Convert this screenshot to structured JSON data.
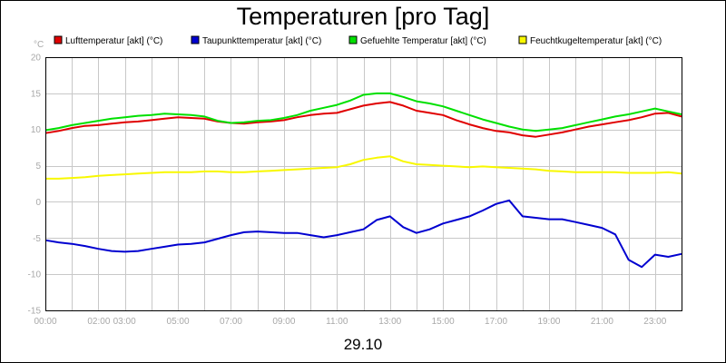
{
  "chart_data": {
    "type": "line",
    "title": "Temperaturen [pro Tag]",
    "ylabel_unit": "°C",
    "xlabel": "29.10",
    "ylim": [
      -15,
      20
    ],
    "yticks": [
      20,
      15,
      10,
      5,
      0,
      -5,
      -10,
      -15
    ],
    "xlim": [
      0,
      24
    ],
    "xticks": [
      {
        "t": 0,
        "label": "00:00"
      },
      {
        "t": 2,
        "label": "02:00"
      },
      {
        "t": 3,
        "label": "03:00"
      },
      {
        "t": 5,
        "label": "05:00"
      },
      {
        "t": 7,
        "label": "07:00"
      },
      {
        "t": 9,
        "label": "09:00"
      },
      {
        "t": 11,
        "label": "11:00"
      },
      {
        "t": 13,
        "label": "13:00"
      },
      {
        "t": 15,
        "label": "15:00"
      },
      {
        "t": 17,
        "label": "17:00"
      },
      {
        "t": 19,
        "label": "19:00"
      },
      {
        "t": 21,
        "label": "21:00"
      },
      {
        "t": 23,
        "label": "23:00"
      }
    ],
    "x": [
      0,
      0.5,
      1,
      1.5,
      2,
      2.5,
      3,
      3.5,
      4,
      4.5,
      5,
      5.5,
      6,
      6.5,
      7,
      7.5,
      8,
      8.5,
      9,
      9.5,
      10,
      10.5,
      11,
      11.5,
      12,
      12.5,
      13,
      13.5,
      14,
      14.5,
      15,
      15.5,
      16,
      16.5,
      17,
      17.5,
      18,
      18.5,
      19,
      19.5,
      20,
      20.5,
      21,
      21.5,
      22,
      22.5,
      23,
      23.5,
      24
    ],
    "series": [
      {
        "name": "Lufttemperatur [akt] (°C)",
        "color": "#e00000",
        "values": [
          9.5,
          9.8,
          10.2,
          10.5,
          10.6,
          10.8,
          11.0,
          11.1,
          11.3,
          11.5,
          11.7,
          11.6,
          11.5,
          11.1,
          10.9,
          10.8,
          11.0,
          11.1,
          11.3,
          11.7,
          12.0,
          12.2,
          12.3,
          12.8,
          13.3,
          13.6,
          13.8,
          13.3,
          12.6,
          12.3,
          12.0,
          11.3,
          10.7,
          10.2,
          9.8,
          9.6,
          9.2,
          9.0,
          9.3,
          9.6,
          10.0,
          10.4,
          10.7,
          11.0,
          11.3,
          11.7,
          12.2,
          12.3,
          11.8
        ]
      },
      {
        "name": "Taupunkttemperatur [akt] (°C)",
        "color": "#0000d0",
        "values": [
          -5.3,
          -5.6,
          -5.8,
          -6.1,
          -6.5,
          -6.8,
          -6.9,
          -6.8,
          -6.5,
          -6.2,
          -5.9,
          -5.8,
          -5.6,
          -5.1,
          -4.6,
          -4.2,
          -4.1,
          -4.2,
          -4.3,
          -4.3,
          -4.6,
          -4.9,
          -4.6,
          -4.2,
          -3.8,
          -2.5,
          -2.0,
          -3.5,
          -4.3,
          -3.8,
          -3.0,
          -2.5,
          -2.0,
          -1.2,
          -0.3,
          0.2,
          -2.0,
          -2.2,
          -2.4,
          -2.4,
          -2.8,
          -3.2,
          -3.6,
          -4.5,
          -8.0,
          -9.0,
          -7.3,
          -7.6,
          -7.2
        ]
      },
      {
        "name": "Gefuehlte Temperatur [akt] (°C)",
        "color": "#00e000",
        "values": [
          9.9,
          10.2,
          10.6,
          10.9,
          11.2,
          11.5,
          11.7,
          11.9,
          12.0,
          12.2,
          12.1,
          12.0,
          11.8,
          11.2,
          10.9,
          11.0,
          11.2,
          11.3,
          11.6,
          12.0,
          12.6,
          13.0,
          13.4,
          14.0,
          14.8,
          15.0,
          15.0,
          14.5,
          13.9,
          13.6,
          13.2,
          12.6,
          12.0,
          11.4,
          10.9,
          10.4,
          10.0,
          9.8,
          10.0,
          10.2,
          10.6,
          11.0,
          11.4,
          11.8,
          12.1,
          12.5,
          12.9,
          12.5,
          12.1
        ]
      },
      {
        "name": "Feuchtkugeltemperatur [akt] (°C)",
        "color": "#f8f800",
        "values": [
          3.2,
          3.2,
          3.3,
          3.4,
          3.6,
          3.7,
          3.8,
          3.9,
          4.0,
          4.1,
          4.1,
          4.1,
          4.2,
          4.2,
          4.1,
          4.1,
          4.2,
          4.3,
          4.4,
          4.5,
          4.6,
          4.7,
          4.8,
          5.2,
          5.8,
          6.1,
          6.3,
          5.6,
          5.2,
          5.1,
          5.0,
          4.9,
          4.8,
          4.9,
          4.8,
          4.7,
          4.6,
          4.5,
          4.3,
          4.2,
          4.1,
          4.1,
          4.1,
          4.1,
          4.0,
          4.0,
          4.0,
          4.1,
          3.9
        ]
      }
    ],
    "grid": true,
    "legend_position": "top"
  }
}
